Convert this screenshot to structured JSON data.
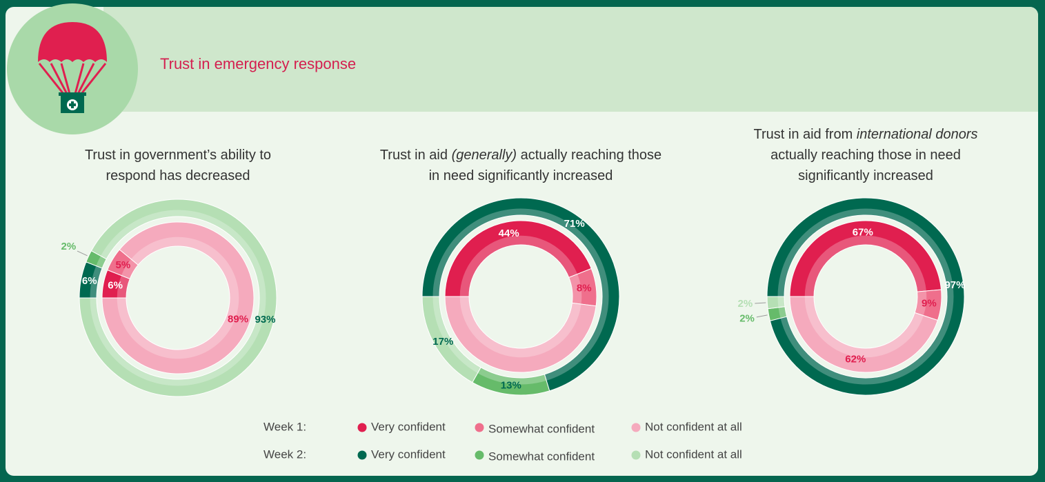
{
  "header": {
    "title": "Trust in emergency response"
  },
  "legend": {
    "rows": [
      {
        "label": "Week 1:",
        "categories": [
          "Very confident",
          "Somewhat confident",
          "Not confident at all"
        ],
        "colors": [
          "#e01f4f",
          "#ef6f8c",
          "#f5aabd"
        ]
      },
      {
        "label": "Week 2:",
        "categories": [
          "Very confident",
          "Somewhat confident",
          "Not confident at all"
        ],
        "colors": [
          "#006950",
          "#66bb6a",
          "#b5dfb4"
        ]
      }
    ]
  },
  "chart_data": [
    {
      "type": "donut",
      "title_parts": [
        {
          "text": "Trust in government’s ability to respond has decreased",
          "italic": false
        }
      ],
      "rings": [
        {
          "values": [
            6,
            5,
            89
          ],
          "value_labels": [
            "6%",
            "5%",
            "89%"
          ]
        },
        {
          "values": [
            6,
            2,
            93
          ],
          "value_labels": [
            "6%",
            "2%",
            "93%"
          ]
        }
      ]
    },
    {
      "type": "donut",
      "title_parts": [
        {
          "text": "Trust in aid ",
          "italic": false
        },
        {
          "text": "(generally)",
          "italic": true
        },
        {
          "text": " actually reaching those in need significantly increased",
          "italic": false
        }
      ],
      "rings": [
        {
          "values": [
            44,
            8,
            48
          ],
          "value_labels": [
            "44%",
            "8%",
            null
          ]
        },
        {
          "values": [
            71,
            13,
            17
          ],
          "value_labels": [
            "71%",
            "13%",
            "17%"
          ]
        }
      ]
    },
    {
      "type": "donut",
      "title_parts": [
        {
          "text": "Trust in aid from ",
          "italic": false
        },
        {
          "text": "international donors",
          "italic": true
        },
        {
          "text": " actually reaching those in need significantly increased",
          "italic": false
        }
      ],
      "rings": [
        {
          "values": [
            67,
            9,
            62
          ],
          "value_labels": [
            "67%",
            "9%",
            "62%"
          ]
        },
        {
          "values": [
            97,
            2,
            2
          ],
          "value_labels": [
            "97%",
            "2%",
            "2%"
          ]
        }
      ]
    }
  ]
}
